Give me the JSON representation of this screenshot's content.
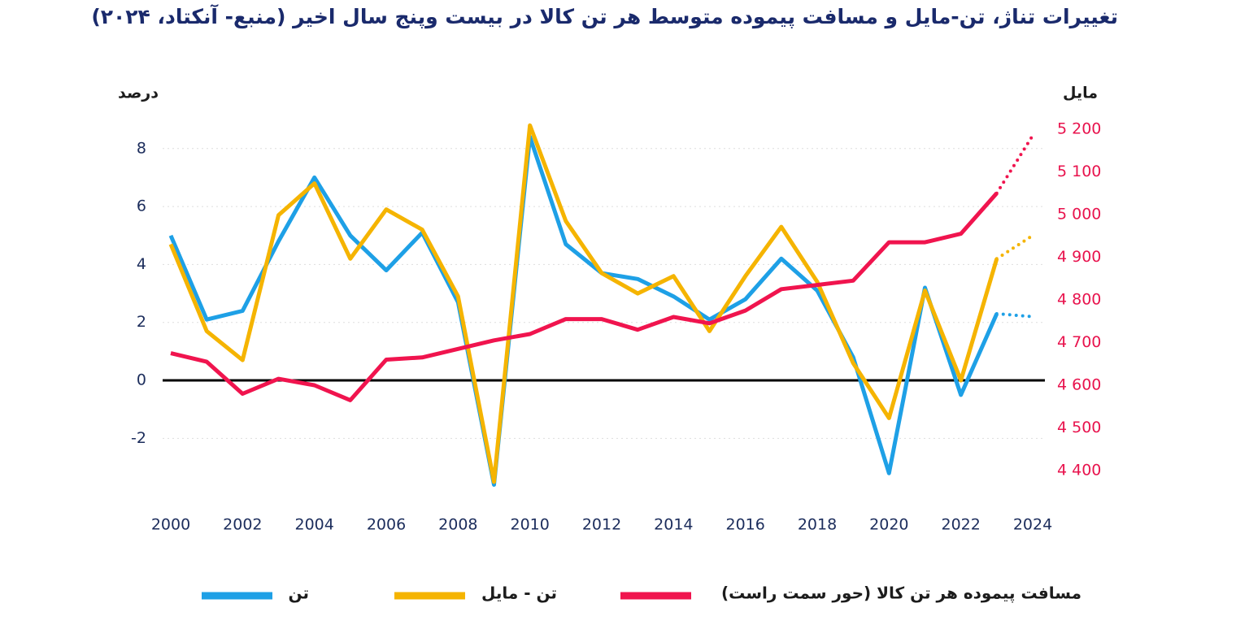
{
  "chart_data": {
    "type": "line",
    "title": "تغییرات تناژ، تن-مایل و مسافت پیموده متوسط هر تن کالا در بیست وپنج سال اخیر (منبع- آنکتاد، ۲۰۲۴)",
    "y_label": "درصد",
    "y2_label": "مایل",
    "x": [
      2000,
      2001,
      2002,
      2003,
      2004,
      2005,
      2006,
      2007,
      2008,
      2009,
      2010,
      2011,
      2012,
      2013,
      2014,
      2015,
      2016,
      2017,
      2018,
      2019,
      2020,
      2021,
      2022,
      2023,
      2024
    ],
    "xlim": [
      2000,
      2024
    ],
    "xticks": [
      2000,
      2002,
      2004,
      2006,
      2008,
      2010,
      2012,
      2014,
      2016,
      2018,
      2020,
      2022,
      2024
    ],
    "ylim": [
      -3.7,
      9.2
    ],
    "yticks": [
      -2,
      0,
      2,
      4,
      6,
      8
    ],
    "y2lim": [
      4360,
      5236
    ],
    "y2ticks": [
      {
        "value": 4400,
        "label": "4 400"
      },
      {
        "value": 4500,
        "label": "4 500"
      },
      {
        "value": 4600,
        "label": "4 600"
      },
      {
        "value": 4700,
        "label": "4 700"
      },
      {
        "value": 4800,
        "label": "4 800"
      },
      {
        "value": 4900,
        "label": "4 900"
      },
      {
        "value": 5000,
        "label": "5 000"
      },
      {
        "value": 5100,
        "label": "5 100"
      },
      {
        "value": 5200,
        "label": "5 200"
      }
    ],
    "grid": true,
    "dotted_from": 2023,
    "series": [
      {
        "name": "تن",
        "color": "#1ea0e6",
        "values": [
          5.0,
          2.1,
          2.4,
          4.8,
          7.0,
          5.0,
          3.8,
          5.1,
          2.7,
          -3.6,
          8.4,
          4.7,
          3.7,
          3.5,
          2.9,
          2.1,
          2.8,
          4.2,
          3.1,
          0.8,
          -3.2,
          3.2,
          -0.5,
          2.3,
          2.2
        ]
      },
      {
        "name": "تن - مایل",
        "color": "#f5b400",
        "values": [
          4.7,
          1.7,
          0.7,
          5.7,
          6.8,
          4.2,
          5.9,
          5.2,
          2.9,
          -3.5,
          8.8,
          5.5,
          3.7,
          3.0,
          3.6,
          1.7,
          3.6,
          5.3,
          3.4,
          0.6,
          -1.3,
          3.1,
          0.0,
          4.2,
          5.0
        ]
      },
      {
        "name": "مسافت پیموده هر تن کالا (حور سمت راست)",
        "color": "#f0144e",
        "axis": "y2",
        "values": [
          4675,
          4655,
          4580,
          4615,
          4600,
          4565,
          4660,
          4665,
          4685,
          4705,
          4720,
          4755,
          4755,
          4730,
          4760,
          4745,
          4775,
          4825,
          4835,
          4845,
          4935,
          4935,
          4955,
          5050,
          5185
        ]
      }
    ]
  }
}
